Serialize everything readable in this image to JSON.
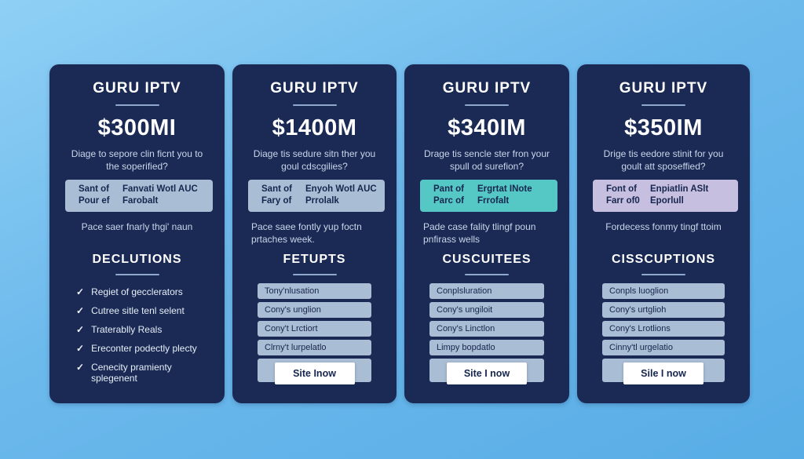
{
  "colors": {
    "page-top": "#8fd0f5",
    "page-mid": "#6cb9ec",
    "page-bottom": "#58ade6",
    "card-bg": "#1a2a55",
    "rule": "#8fa9cc",
    "text-light": "#c9d6ea",
    "row-bg": "#a9bdd4",
    "box-text": "#17264e"
  },
  "cards": [
    {
      "brand": "GURU IPTV",
      "price": "$300MI",
      "subtitle": "Diage to sepore clin ficnt you to the soperified?",
      "info_box": {
        "bg": "#a9bdd4",
        "rows": [
          {
            "label": "Sant of",
            "value": "Fanvati Wotl AUC"
          },
          {
            "label": "Pour ef",
            "value": "Farobalt"
          }
        ]
      },
      "note": "Pace saer fnarly thgi' naun",
      "section_title": "DECLUTIONS",
      "features": [
        "Regiet of gecclerators",
        "Cutree sitle tenl selent",
        "Traterablly Reals",
        "Ereconter podectly plecty",
        "Cenecity pramienty splegenent"
      ]
    },
    {
      "brand": "GURU IPTV",
      "price": "$1400M",
      "subtitle": "Diage tis sedure sitn ther you goul cdscgilies?",
      "info_box": {
        "bg": "#a9bdd4",
        "rows": [
          {
            "label": "Sant of",
            "value": "Enyoh Wotl AUC"
          },
          {
            "label": "Fary of",
            "value": "Prrolalk"
          }
        ]
      },
      "note": "Pace saee fontly yup foctn prtaches week.",
      "section_title": "FETUPTS",
      "features": [
        "Tony'nlusation",
        "Cony's unglion",
        "Cony't Lrctiort",
        "Clrny't lurpelatlo"
      ],
      "button": "Site Inow"
    },
    {
      "brand": "GURU IPTV",
      "price": "$340IM",
      "subtitle": "Drage tis sencle ster fron your spull od surefion?",
      "info_box": {
        "bg": "#55c8c6",
        "rows": [
          {
            "label": "Pant of",
            "value": "Ergrtat INote"
          },
          {
            "label": "Parc of",
            "value": "Frrofalt"
          }
        ]
      },
      "note": "Pade case fality tlingf poun pnfirass wells",
      "section_title": "CUSCUITEES",
      "features": [
        "Conplsluration",
        "Cony's ungiloit",
        "Cony's Linctlon",
        "Limpy bopdatlo"
      ],
      "button": "Site I now"
    },
    {
      "brand": "GURU IPTV",
      "price": "$350IM",
      "subtitle": "Drige tis eedore stinit for you goult att sposeffied?",
      "info_box": {
        "bg": "#c7bfdf",
        "rows": [
          {
            "label": "Font of",
            "value": "Enpiatlin ASlt"
          },
          {
            "label": "Farr of0",
            "value": "Eporlull"
          }
        ]
      },
      "note": "Fordecess fonmy tingf ttoim",
      "section_title": "CISSCUPTIONS",
      "features": [
        "Conpls luoglion",
        "Cony's urtglioh",
        "Cony's Lrotlions",
        "Cinny'tl urgelatio"
      ],
      "button": "Sile I now"
    }
  ]
}
